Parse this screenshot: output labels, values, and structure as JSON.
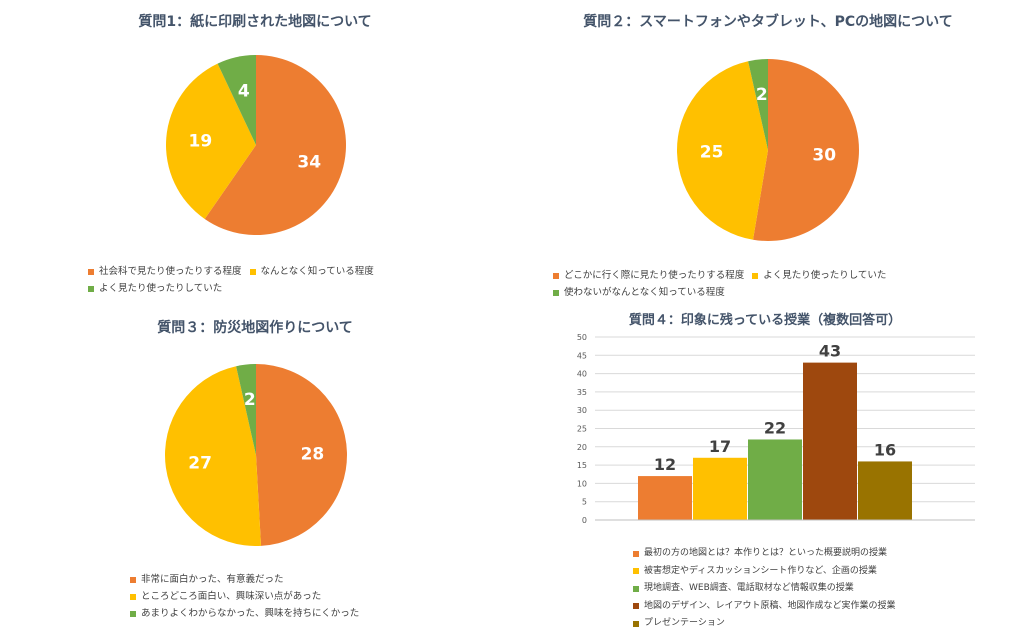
{
  "colors": {
    "orange": "#ED7D31",
    "yellow": "#FFC000",
    "green": "#70AD47",
    "brown": "#9E480E",
    "olive": "#997300",
    "label_white": "#ffffff",
    "label_dark": "#404040"
  },
  "chart_data": [
    {
      "type": "pie",
      "title": "質問1：紙に印刷された地図について",
      "categories": [
        "社会科で見たり使ったりする程度",
        "なんとなく知っている程度",
        "よく見たり使ったりしていた"
      ],
      "values": [
        34,
        19,
        4
      ],
      "legend_position": "bottom"
    },
    {
      "type": "pie",
      "title": "質問２：スマートフォンやタブレット、PCの地図について",
      "categories": [
        "どこかに行く際に見たり使ったりする程度",
        "よく見たり使ったりしていた",
        "使わないがなんとなく知っている程度"
      ],
      "values": [
        30,
        25,
        2
      ],
      "legend_position": "bottom"
    },
    {
      "type": "pie",
      "title": "質問３：防災地図作りについて",
      "categories": [
        "非常に面白かった、有意義だった",
        "ところどころ面白い、興味深い点があった",
        "あまりよくわからなかった、興味を持ちにくかった"
      ],
      "values": [
        28,
        27,
        2
      ],
      "legend_position": "bottom"
    },
    {
      "type": "bar",
      "title": "質問４：印象に残っている授業（複数回答可）",
      "categories": [
        "最初の方の地図とは？本作りとは？といった概要説明の授業",
        "被害想定やディスカッションシート作りなど、企画の授業",
        "現地調査、WEB調査、電話取材など情報収集の授業",
        "地図のデザイン、レイアウト原稿、地図作成など実作業の授業",
        "プレゼンテーション"
      ],
      "values": [
        12,
        17,
        22,
        43,
        16
      ],
      "ylim": [
        0,
        50
      ],
      "yticks": [
        "0",
        "5",
        "10",
        "15",
        "20",
        "25",
        "30",
        "35",
        "40",
        "45",
        "50"
      ],
      "grid": true,
      "legend_position": "bottom"
    }
  ]
}
